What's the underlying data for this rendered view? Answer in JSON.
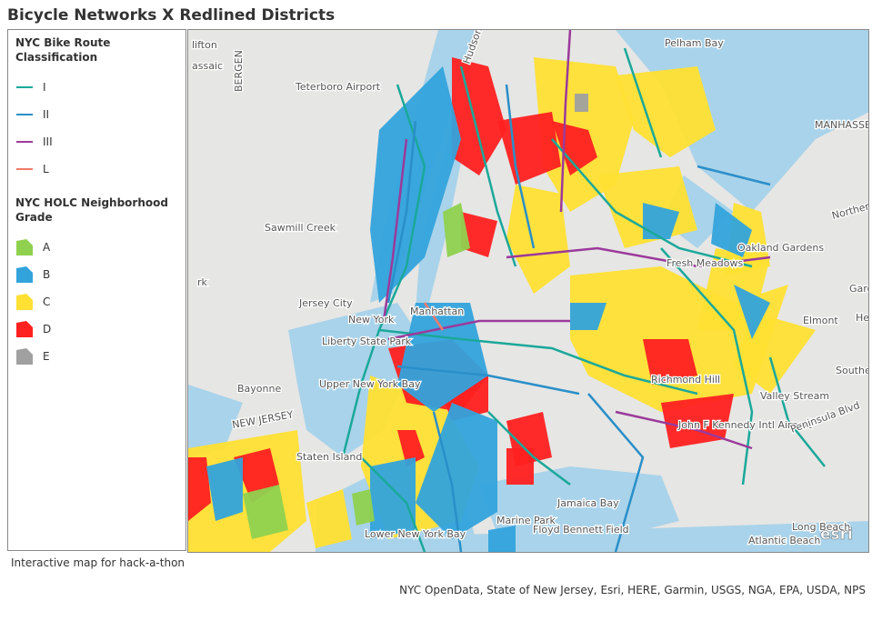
{
  "header": {
    "title": "Bicycle Networks X Redlined Districts"
  },
  "legend": {
    "bike_routes": {
      "title": "NYC Bike Route Classification",
      "items": [
        {
          "label": "I",
          "color": "#1aa89a"
        },
        {
          "label": "II",
          "color": "#2a8fc9"
        },
        {
          "label": "III",
          "color": "#9b3a9b"
        },
        {
          "label": "L",
          "color": "#f07a6a"
        }
      ]
    },
    "holc": {
      "title": "NYC HOLC Neighborhood Grade",
      "items": [
        {
          "label": "A",
          "color": "#8fd14f"
        },
        {
          "label": "B",
          "color": "#33a3dc"
        },
        {
          "label": "C",
          "color": "#ffe033"
        },
        {
          "label": "D",
          "color": "#ff2020"
        },
        {
          "label": "E",
          "color": "#a0a0a0"
        }
      ]
    }
  },
  "map": {
    "labels": [
      "lifton",
      "assaic",
      "Teterboro Airport",
      "BERGEN",
      "Jersey City",
      "New York",
      "Manhattan",
      "Liberty State Park",
      "Upper New York Bay",
      "Bayonne",
      "NEW JERSEY",
      "Staten Island",
      "Lower New York Bay",
      "Jamaica Bay",
      "Floyd Bennett Field",
      "Marine Park",
      "John F Kennedy Intl Airport",
      "Richmond Hill",
      "Valley Stream",
      "Elmont",
      "Fresh Meadows",
      "Oakland Gardens",
      "MANHASSET NECK",
      "Northern Pkwy",
      "Southern Pkwy",
      "Peninsula Blvd",
      "Long Beach",
      "Atlantic Beach",
      "Pelham Bay",
      "Garden",
      "Hem",
      "Sawmill Creek",
      "rk",
      "Hudson"
    ],
    "logo": "esri"
  },
  "caption": "Interactive map for hack-a-thon",
  "attribution": "NYC OpenData, State of New Jersey, Esri, HERE, Garmin, USGS, NGA, EPA, USDA, NPS"
}
